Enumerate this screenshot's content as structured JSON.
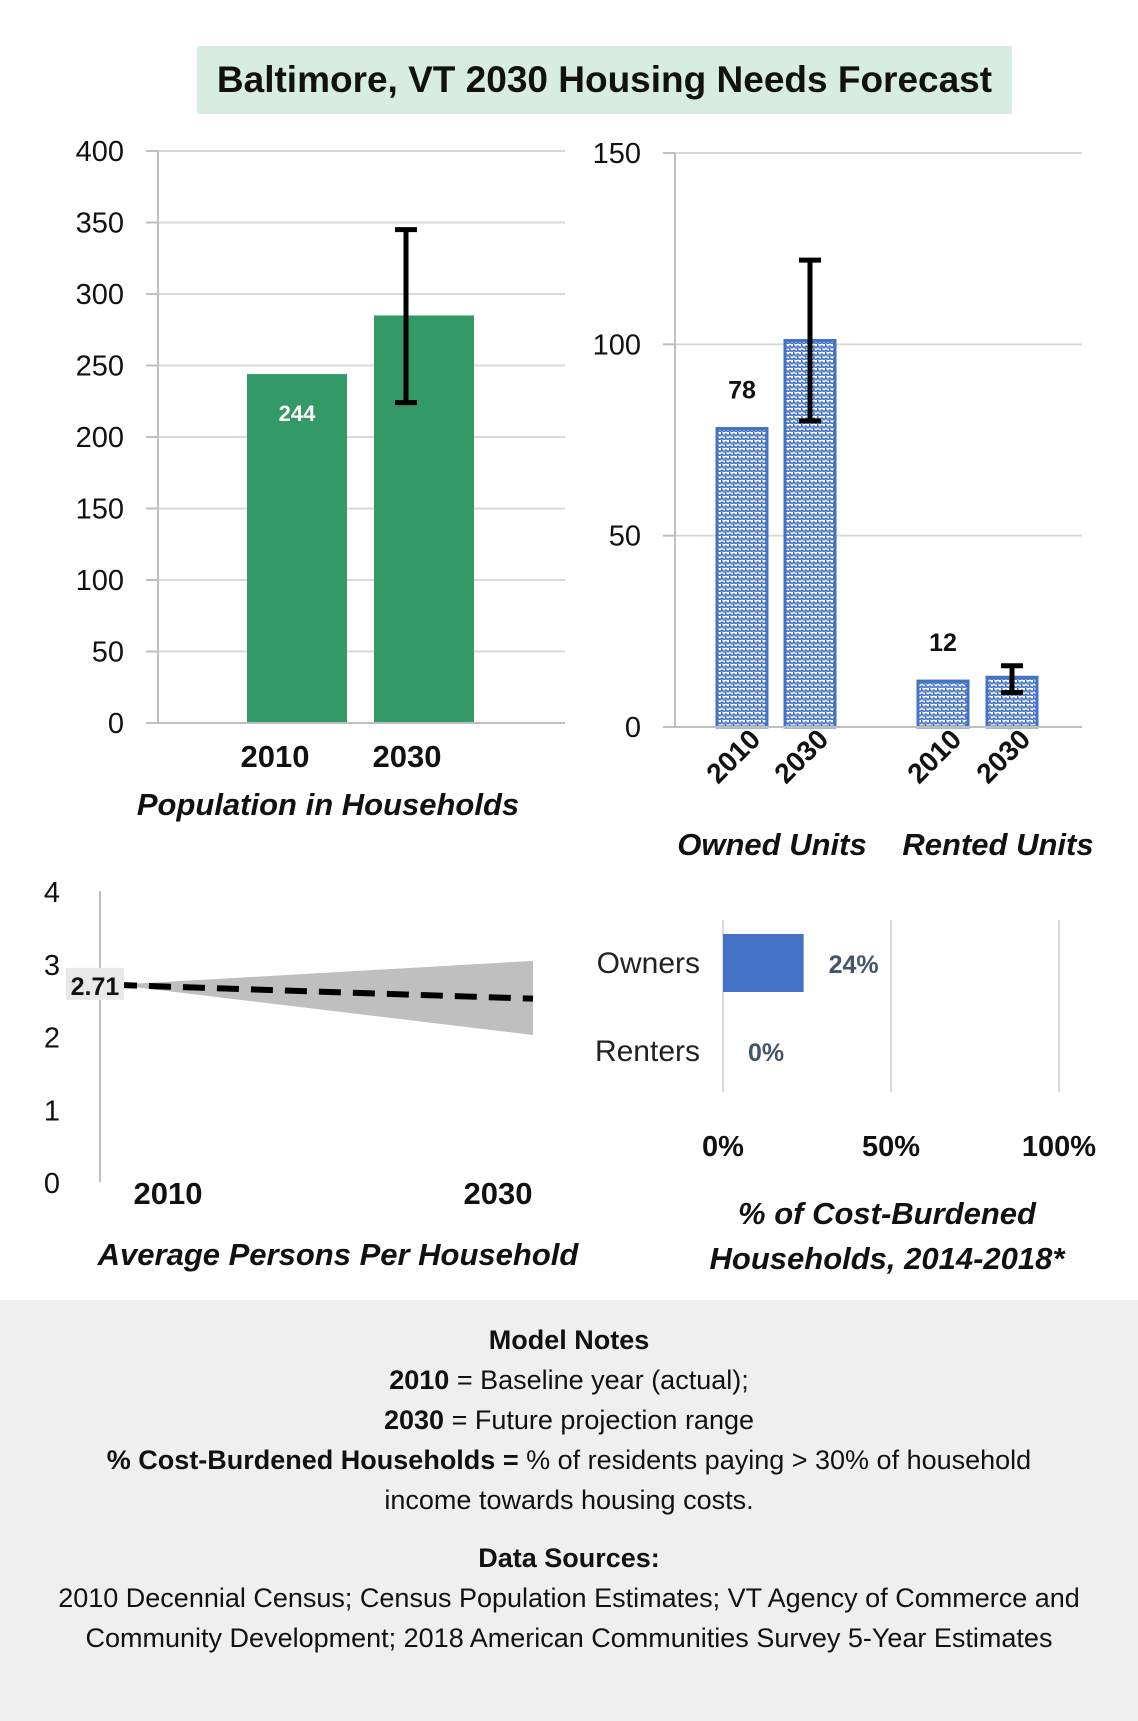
{
  "title": "Baltimore, VT 2030 Housing Needs Forecast",
  "colors": {
    "green": "#339966",
    "blue": "#4472c4",
    "gray_band": "#bfbfbf",
    "title_bg": "#d8ede1",
    "notes_bg": "#efefef"
  },
  "chart_data": [
    {
      "type": "bar",
      "name": "Population in Households",
      "xlabel": "Population in Households",
      "categories": [
        "2010",
        "2030"
      ],
      "values": [
        244,
        285
      ],
      "error_bars": [
        null,
        [
          224,
          345
        ]
      ],
      "data_labels": [
        "244",
        ""
      ],
      "ylim": [
        0,
        400
      ],
      "yticks": [
        "0",
        "50",
        "100",
        "150",
        "200",
        "250",
        "300",
        "350",
        "400"
      ],
      "grid": true
    },
    {
      "type": "bar",
      "groups": [
        "Owned Units",
        "Rented Units"
      ],
      "categories": [
        "2010",
        "2030",
        "2010",
        "2030"
      ],
      "values": [
        78,
        101,
        12,
        13
      ],
      "error_bars": [
        null,
        [
          80,
          122
        ],
        null,
        [
          9,
          16
        ]
      ],
      "data_labels": [
        "78",
        "",
        "12",
        ""
      ],
      "ylim": [
        0,
        150
      ],
      "yticks": [
        "0",
        "50",
        "100",
        "150"
      ],
      "pattern": "hatched",
      "grid": true
    },
    {
      "type": "line",
      "xlabel": "Average Persons Per Household",
      "x": [
        "2010",
        "2030"
      ],
      "values": [
        2.71,
        2.52
      ],
      "range_2030": [
        2.02,
        3.04
      ],
      "data_label": "2.71",
      "ylim": [
        0,
        4
      ],
      "yticks": [
        "0",
        "1",
        "2",
        "3",
        "4"
      ],
      "line_style": "dashed"
    },
    {
      "type": "bar",
      "orientation": "horizontal",
      "xlabel_line1": "% of Cost-Burdened",
      "xlabel_line2": "Households, 2014-2018*",
      "categories": [
        "Owners",
        "Renters"
      ],
      "values": [
        24,
        0
      ],
      "data_labels": [
        "24%",
        "0%"
      ],
      "xlim": [
        0,
        100
      ],
      "xticks": [
        "0%",
        "50%",
        "100%"
      ],
      "grid": true
    }
  ],
  "notes": {
    "heading": "Model Notes",
    "line1_bold": "2010",
    "line1_rest": " = Baseline year (actual);",
    "line2_bold": "2030",
    "line2_rest": " = Future projection range",
    "line3_bold": "% Cost-Burdened Households = ",
    "line3_rest": "% of residents paying > 30% of household income towards housing costs.",
    "sources_heading": "Data Sources:",
    "sources_text": "2010 Decennial Census; Census Population Estimates; VT Agency of Commerce and Community Development; 2018 American Communities Survey 5-Year Estimates"
  }
}
